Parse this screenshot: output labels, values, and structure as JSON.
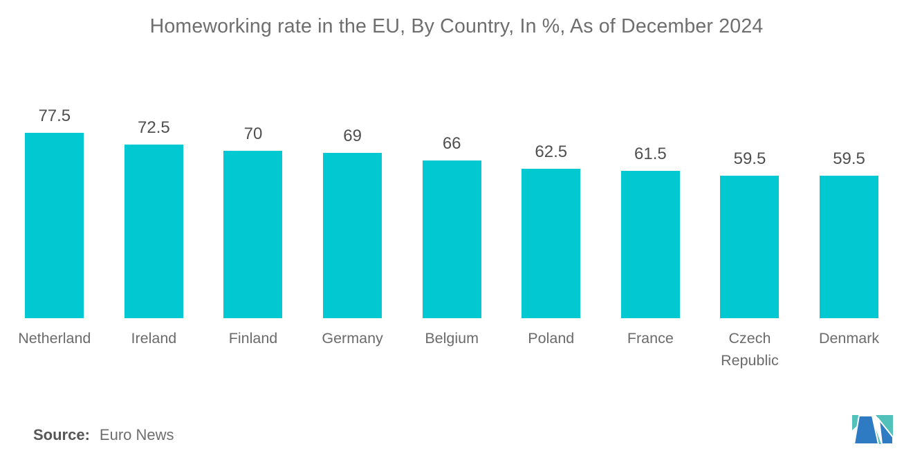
{
  "title": "Homeworking rate in the EU, By Country, In %, As of December 2024",
  "chart_data": {
    "type": "bar",
    "title": "Homeworking rate in the EU, By Country, In %, As of December 2024",
    "categories": [
      "Netherland",
      "Ireland",
      "Finland",
      "Germany",
      "Belgium",
      "Poland",
      "France",
      "Czech Republic",
      "Denmark"
    ],
    "values": [
      77.5,
      72.5,
      70,
      69,
      66,
      62.5,
      61.5,
      59.5,
      59.5
    ],
    "xlabel": "",
    "ylabel": "",
    "ylim": [
      0,
      77.5
    ],
    "grid": false,
    "axes_hidden": true,
    "value_labels_shown": true,
    "legend": "none",
    "bar_color": "#02c9d1"
  },
  "source": {
    "label": "Source:",
    "value": "Euro News"
  },
  "logo": {
    "icon": "m-monogram-logo",
    "teal": "#53c1bb",
    "blue": "#2e7bc4"
  }
}
